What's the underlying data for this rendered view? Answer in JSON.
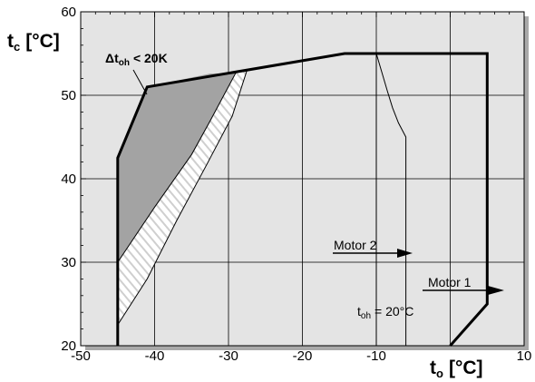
{
  "chart_data": {
    "type": "line",
    "title": "",
    "xlabel": {
      "main": "t",
      "sub": "o",
      "unit": "[°C]"
    },
    "ylabel": {
      "main": "t",
      "sub": "c",
      "unit": "[°C]"
    },
    "xlim": [
      -50,
      10
    ],
    "ylim": [
      20,
      60
    ],
    "x_ticks": [
      -50,
      -40,
      -30,
      -20,
      -10,
      10
    ],
    "y_ticks": [
      20,
      30,
      40,
      50,
      60
    ],
    "grid": true,
    "envelope": [
      [
        -45,
        20
      ],
      [
        -45,
        42.5
      ],
      [
        -41,
        51
      ],
      [
        -14.3,
        55
      ],
      [
        5,
        55
      ],
      [
        5,
        25
      ],
      [
        0,
        20
      ]
    ],
    "motor2_boundary": [
      [
        -10,
        55
      ],
      [
        -10,
        20
      ]
    ],
    "motor2_curve": [
      [
        -10,
        55
      ],
      [
        -8.5,
        50.5
      ],
      [
        -7.8,
        48.5
      ],
      [
        -7,
        46.7
      ],
      [
        -6,
        45
      ],
      [
        -6,
        20
      ]
    ],
    "dt_oh_region": {
      "outer": [
        [
          -45,
          42.5
        ],
        [
          -41,
          51
        ],
        [
          -32.5,
          52.6
        ]
      ],
      "inner": [
        [
          -45,
          30
        ],
        [
          -40,
          36.6
        ],
        [
          -35,
          42.9
        ],
        [
          -32.5,
          46.9
        ],
        [
          -29,
          52.7
        ]
      ]
    },
    "hatch_region": {
      "upper": [
        [
          -45,
          30
        ],
        [
          -40,
          36.6
        ],
        [
          -35,
          42.9
        ],
        [
          -32.5,
          46.9
        ],
        [
          -29,
          52.7
        ]
      ],
      "lower": [
        [
          -45,
          22.5
        ],
        [
          -41,
          28
        ],
        [
          -37,
          35
        ],
        [
          -33,
          41.6
        ],
        [
          -29.5,
          47.5
        ],
        [
          -27.5,
          53
        ]
      ]
    },
    "annotations": {
      "dt_oh": {
        "symbol": "Δt",
        "sub": "oh",
        "text": "< 20K"
      },
      "t_oh": {
        "symbol": "t",
        "sub": "oh",
        "text": "= 20°C"
      },
      "motor2": "Motor 2",
      "motor1": "Motor 1"
    }
  },
  "colors": {
    "plot_bg": "#e4e4e4",
    "shadow": "#a9a9a9",
    "dark_fill": "#a3a3a3",
    "hatch_line": "#cfcfcf",
    "line": "#000000"
  }
}
